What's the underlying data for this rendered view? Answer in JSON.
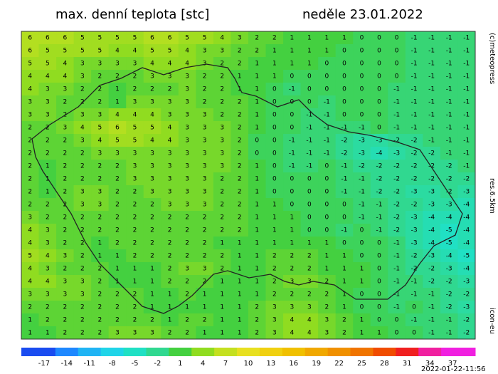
{
  "header": {
    "title": "max. denní teplota [stc]",
    "date": "neděle 23.01.2022"
  },
  "side": {
    "copyright": "(c)meteopress",
    "resolution": "res.6.5km",
    "model": "icon-eu"
  },
  "footer": {
    "run": "2022-01-22-11:56"
  },
  "colorbar": {
    "lim": [
      -20,
      40
    ],
    "ticks": [
      -17,
      -14,
      -11,
      -8,
      -5,
      -2,
      1,
      4,
      7,
      10,
      13,
      16,
      19,
      22,
      25,
      28,
      31,
      34,
      37
    ],
    "colors": [
      "#1a4cf0",
      "#1e88ff",
      "#20b4f4",
      "#20d4e8",
      "#20e0c4",
      "#30d890",
      "#44d040",
      "#90dc20",
      "#c4e020",
      "#e8e020",
      "#f0d010",
      "#f0c000",
      "#f0a800",
      "#f09000",
      "#f07400",
      "#f04c00",
      "#f02020",
      "#f020a0",
      "#f020e0"
    ]
  },
  "grid": {
    "rows": [
      [
        6,
        6,
        6,
        5,
        5,
        5,
        5,
        6,
        6,
        5,
        5,
        4,
        3,
        2,
        2,
        1,
        1,
        1,
        1,
        0,
        0,
        0,
        -1,
        -1,
        -1,
        -1
      ],
      [
        6,
        5,
        5,
        5,
        5,
        4,
        4,
        5,
        5,
        4,
        3,
        3,
        2,
        2,
        1,
        1,
        1,
        1,
        0,
        0,
        0,
        0,
        -1,
        -1,
        -1,
        -1
      ],
      [
        5,
        5,
        4,
        3,
        3,
        3,
        3,
        4,
        4,
        4,
        3,
        2,
        2,
        1,
        1,
        1,
        1,
        0,
        0,
        0,
        0,
        0,
        -1,
        -1,
        -1,
        -1
      ],
      [
        4,
        4,
        4,
        3,
        2,
        2,
        2,
        3,
        3,
        3,
        2,
        2,
        1,
        1,
        1,
        0,
        0,
        0,
        0,
        0,
        0,
        0,
        -1,
        -1,
        -1,
        -1
      ],
      [
        4,
        3,
        3,
        2,
        2,
        1,
        2,
        2,
        2,
        3,
        2,
        2,
        1,
        1,
        0,
        -1,
        0,
        0,
        0,
        0,
        0,
        -1,
        -1,
        -1,
        -1,
        -1
      ],
      [
        3,
        3,
        2,
        2,
        2,
        1,
        3,
        3,
        3,
        3,
        2,
        2,
        2,
        1,
        0,
        0,
        0,
        -1,
        0,
        0,
        0,
        -1,
        -1,
        -1,
        -1,
        -1
      ],
      [
        3,
        3,
        2,
        3,
        3,
        4,
        4,
        4,
        3,
        3,
        3,
        2,
        2,
        1,
        0,
        0,
        -1,
        -1,
        0,
        0,
        0,
        -1,
        -1,
        -1,
        -1,
        -1
      ],
      [
        2,
        2,
        3,
        4,
        5,
        6,
        5,
        5,
        4,
        3,
        3,
        3,
        2,
        1,
        0,
        0,
        -1,
        -1,
        -1,
        -1,
        0,
        -1,
        -1,
        -1,
        -1,
        -1
      ],
      [
        2,
        2,
        2,
        3,
        4,
        5,
        5,
        4,
        4,
        3,
        3,
        3,
        2,
        0,
        0,
        -1,
        -1,
        -1,
        -2,
        -3,
        -3,
        -2,
        -2,
        -1,
        -1,
        -1
      ],
      [
        2,
        2,
        2,
        2,
        3,
        3,
        3,
        3,
        3,
        3,
        3,
        3,
        2,
        0,
        0,
        -1,
        -1,
        -1,
        -2,
        -3,
        -4,
        -3,
        -2,
        -2,
        -1,
        -1
      ],
      [
        2,
        1,
        2,
        2,
        2,
        2,
        3,
        3,
        3,
        3,
        3,
        3,
        2,
        1,
        0,
        -1,
        -1,
        0,
        -1,
        -2,
        -2,
        -2,
        -2,
        -2,
        -2,
        -1
      ],
      [
        2,
        1,
        2,
        2,
        2,
        2,
        3,
        3,
        3,
        3,
        3,
        2,
        2,
        1,
        0,
        0,
        0,
        0,
        -1,
        -1,
        -2,
        -2,
        -2,
        -2,
        -2,
        -2
      ],
      [
        2,
        1,
        2,
        3,
        3,
        2,
        2,
        3,
        3,
        3,
        3,
        2,
        2,
        1,
        0,
        0,
        0,
        0,
        -1,
        -1,
        -2,
        -2,
        -3,
        -3,
        -2,
        -3
      ],
      [
        2,
        2,
        2,
        3,
        3,
        2,
        2,
        2,
        3,
        3,
        3,
        2,
        2,
        1,
        1,
        0,
        0,
        0,
        0,
        -1,
        -1,
        -2,
        -2,
        -3,
        -3,
        -4
      ],
      [
        3,
        2,
        2,
        2,
        2,
        2,
        2,
        2,
        2,
        2,
        2,
        2,
        2,
        1,
        1,
        1,
        0,
        0,
        0,
        -1,
        -1,
        -2,
        -3,
        -4,
        -4,
        -4
      ],
      [
        4,
        3,
        2,
        2,
        2,
        2,
        2,
        2,
        2,
        2,
        2,
        2,
        2,
        1,
        1,
        1,
        0,
        0,
        -1,
        0,
        -1,
        -2,
        -3,
        -4,
        -5,
        -4
      ],
      [
        4,
        3,
        2,
        2,
        1,
        2,
        2,
        2,
        2,
        2,
        2,
        1,
        1,
        1,
        1,
        1,
        1,
        1,
        0,
        0,
        0,
        -1,
        -3,
        -4,
        -5,
        -4
      ],
      [
        5,
        4,
        3,
        2,
        1,
        1,
        2,
        2,
        2,
        2,
        2,
        2,
        1,
        1,
        2,
        2,
        2,
        1,
        1,
        0,
        0,
        -1,
        -2,
        -3,
        -4,
        -5
      ],
      [
        4,
        3,
        2,
        2,
        2,
        1,
        1,
        1,
        2,
        3,
        3,
        2,
        1,
        1,
        2,
        2,
        2,
        1,
        1,
        1,
        0,
        -1,
        -2,
        -2,
        -3,
        -4
      ],
      [
        4,
        4,
        3,
        3,
        2,
        1,
        1,
        1,
        2,
        2,
        2,
        1,
        1,
        1,
        2,
        3,
        3,
        2,
        1,
        1,
        0,
        -1,
        -1,
        -2,
        -2,
        -3
      ],
      [
        3,
        3,
        3,
        3,
        2,
        2,
        2,
        1,
        1,
        2,
        1,
        1,
        1,
        1,
        2,
        2,
        2,
        2,
        1,
        0,
        0,
        -1,
        -1,
        -1,
        -2,
        -2
      ],
      [
        2,
        2,
        2,
        2,
        2,
        2,
        2,
        1,
        1,
        1,
        1,
        1,
        1,
        2,
        3,
        3,
        3,
        2,
        1,
        0,
        0,
        -1,
        0,
        -1,
        -2,
        -3
      ],
      [
        1,
        2,
        2,
        2,
        2,
        2,
        2,
        2,
        1,
        2,
        2,
        1,
        1,
        2,
        3,
        4,
        4,
        3,
        2,
        1,
        0,
        0,
        -1,
        -1,
        -1,
        -2
      ],
      [
        1,
        1,
        2,
        2,
        2,
        3,
        3,
        3,
        2,
        2,
        1,
        1,
        1,
        2,
        3,
        4,
        4,
        3,
        2,
        1,
        1,
        0,
        0,
        -1,
        -1,
        -2
      ]
    ]
  }
}
